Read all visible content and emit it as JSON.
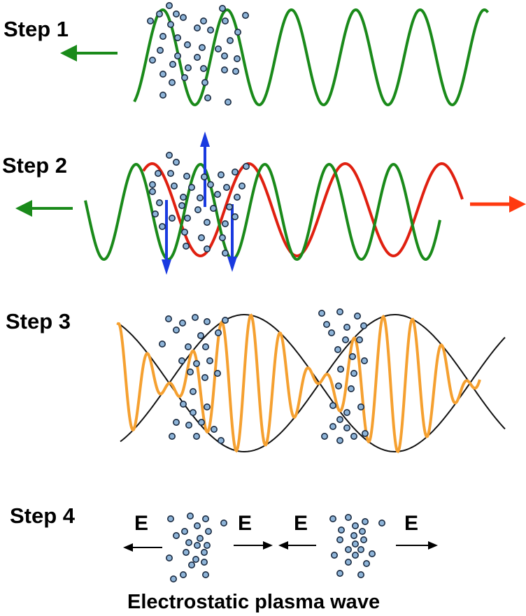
{
  "steps": [
    {
      "label": "Step 1"
    },
    {
      "label": "Step 2"
    },
    {
      "label": "Step 3"
    },
    {
      "label": "Step 4"
    }
  ],
  "step4": {
    "field_label": "E",
    "caption": "Electrostatic plasma wave"
  },
  "colors": {
    "wave_green": "#1a8a1a",
    "wave_red": "#e02010",
    "arrow_green": "#1a8a1a",
    "arrow_red": "#ff3a10",
    "arrow_blue": "#1a3ae0",
    "wave_orange": "#f5a030",
    "envelope": "#111111",
    "particle_fill": "#8eb4d8",
    "particle_stroke": "#1a2a40"
  }
}
